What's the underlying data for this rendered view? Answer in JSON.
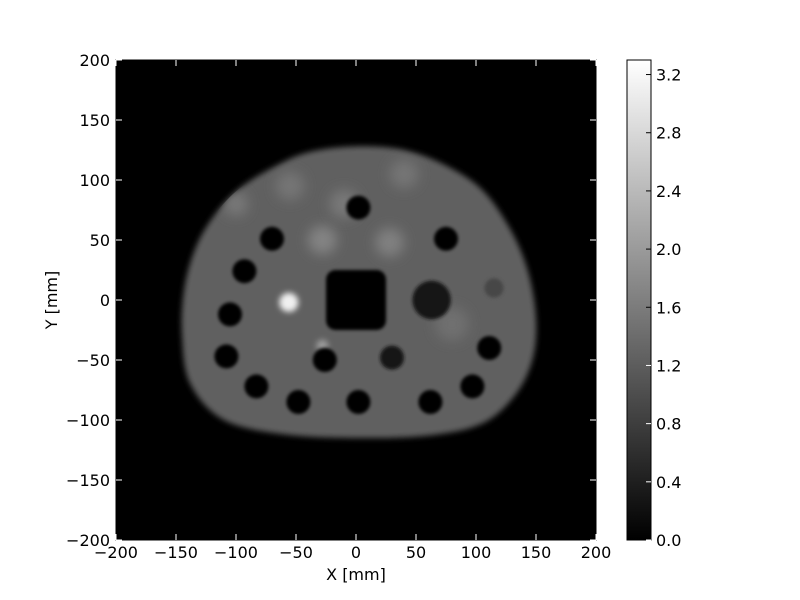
{
  "chart_data": {
    "type": "heatmap",
    "colormap": "gray",
    "xlabel": "X [mm]",
    "ylabel": "Y [mm]",
    "xlim": [
      -200,
      200
    ],
    "ylim": [
      -200,
      200
    ],
    "xticks": [
      -200,
      -150,
      -100,
      -50,
      0,
      50,
      100,
      150,
      200
    ],
    "yticks": [
      -200,
      -150,
      -100,
      -50,
      0,
      50,
      100,
      150,
      200
    ],
    "xtick_labels": [
      "−200",
      "−150",
      "−100",
      "−50",
      "0",
      "50",
      "100",
      "150",
      "200"
    ],
    "ytick_labels": [
      "−200",
      "−150",
      "−100",
      "−50",
      "0",
      "50",
      "100",
      "150",
      "200"
    ],
    "colorbar": {
      "min": 0.0,
      "max": 3.3,
      "ticks": [
        0.0,
        0.4,
        0.8,
        1.2,
        1.6,
        2.0,
        2.4,
        2.8,
        3.2
      ],
      "tick_labels": [
        "0.0",
        "0.4",
        "0.8",
        "1.2",
        "1.6",
        "2.0",
        "2.4",
        "2.8",
        "3.2"
      ]
    },
    "background_value": 0.0,
    "body_value": 1.25,
    "body_outline": [
      [
        -145,
        -30
      ],
      [
        -143,
        10
      ],
      [
        -133,
        45
      ],
      [
        -117,
        72
      ],
      [
        -97,
        93
      ],
      [
        -70,
        110
      ],
      [
        -40,
        123
      ],
      [
        0,
        128
      ],
      [
        40,
        125
      ],
      [
        75,
        112
      ],
      [
        105,
        92
      ],
      [
        128,
        60
      ],
      [
        143,
        25
      ],
      [
        150,
        -15
      ],
      [
        147,
        -50
      ],
      [
        132,
        -80
      ],
      [
        105,
        -103
      ],
      [
        60,
        -113
      ],
      [
        0,
        -115
      ],
      [
        -60,
        -112
      ],
      [
        -110,
        -100
      ],
      [
        -138,
        -70
      ]
    ],
    "holes": [
      {
        "x": 2,
        "y": 77,
        "r": 10,
        "value": 0.0
      },
      {
        "x": -70,
        "y": 51,
        "r": 10,
        "value": 0.0
      },
      {
        "x": 75,
        "y": 51,
        "r": 10,
        "value": 0.0
      },
      {
        "x": -93,
        "y": 24,
        "r": 10,
        "value": 0.0
      },
      {
        "x": -105,
        "y": -12,
        "r": 10,
        "value": 0.0
      },
      {
        "x": -108,
        "y": -47,
        "r": 10,
        "value": 0.0
      },
      {
        "x": -83,
        "y": -72,
        "r": 10,
        "value": 0.0
      },
      {
        "x": -48,
        "y": -85,
        "r": 10,
        "value": 0.0
      },
      {
        "x": 2,
        "y": -85,
        "r": 10,
        "value": 0.0
      },
      {
        "x": 62,
        "y": -85,
        "r": 10,
        "value": 0.0
      },
      {
        "x": 97,
        "y": -72,
        "r": 10,
        "value": 0.0
      },
      {
        "x": 111,
        "y": -40,
        "r": 10,
        "value": 0.0
      },
      {
        "x": -26,
        "y": -50,
        "r": 10,
        "value": 0.0
      },
      {
        "x": 30,
        "y": -48,
        "r": 10,
        "value": 0.3
      },
      {
        "x": 63,
        "y": 0,
        "r": 16,
        "value": 0.3
      },
      {
        "x": 115,
        "y": 10,
        "r": 8,
        "value": 0.9
      }
    ],
    "central_hole": {
      "x": 0,
      "y": 0,
      "half_width": 25,
      "value": 0.05
    },
    "bright_spots": [
      {
        "x": -56,
        "y": -2,
        "r": 8,
        "value": 3.1
      },
      {
        "x": -28,
        "y": -38,
        "r": 5,
        "value": 2.0
      },
      {
        "x": -28,
        "y": 50,
        "r": 12,
        "value": 1.7
      },
      {
        "x": 28,
        "y": 48,
        "r": 12,
        "value": 1.65
      },
      {
        "x": -10,
        "y": 80,
        "r": 12,
        "value": 1.55
      },
      {
        "x": -100,
        "y": 80,
        "r": 10,
        "value": 1.55
      },
      {
        "x": 40,
        "y": 105,
        "r": 12,
        "value": 1.5
      },
      {
        "x": -55,
        "y": 95,
        "r": 12,
        "value": 1.5
      },
      {
        "x": 80,
        "y": -20,
        "r": 14,
        "value": 1.45
      }
    ]
  }
}
